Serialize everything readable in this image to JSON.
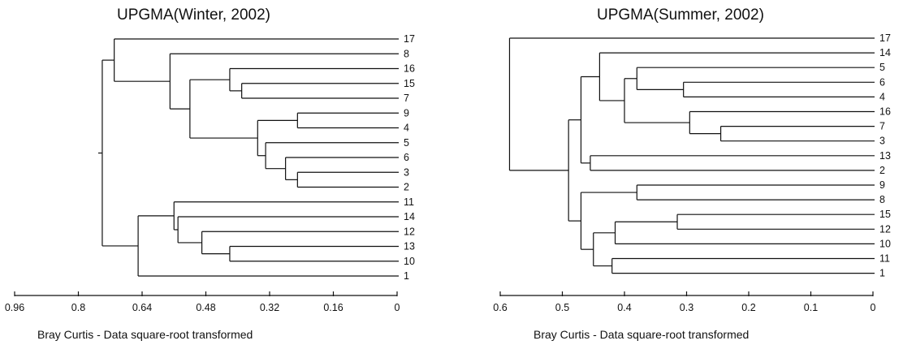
{
  "chart_data": [
    {
      "type": "dendrogram",
      "title": "UPGMA(Winter, 2002)",
      "xlabel": "Bray Curtis - Data square-root transformed",
      "xlim": [
        0.96,
        0
      ],
      "xticks": [
        "0.96",
        "0.8",
        "0.64",
        "0.48",
        "0.32",
        "0.16",
        "0"
      ],
      "leaves": [
        "17",
        "8",
        "16",
        "15",
        "7",
        "9",
        "4",
        "5",
        "6",
        "3",
        "2",
        "11",
        "14",
        "12",
        "13",
        "10",
        "1"
      ],
      "merges": [
        {
          "id": "m1",
          "children": [
            "15",
            "7"
          ],
          "height": 0.39
        },
        {
          "id": "m2",
          "children": [
            "16",
            "m1"
          ],
          "height": 0.42
        },
        {
          "id": "m3",
          "children": [
            "3",
            "2"
          ],
          "height": 0.25
        },
        {
          "id": "m4",
          "children": [
            "6",
            "m3"
          ],
          "height": 0.28
        },
        {
          "id": "m5",
          "children": [
            "5",
            "m4"
          ],
          "height": 0.33
        },
        {
          "id": "m6",
          "children": [
            "9",
            "4"
          ],
          "height": 0.25
        },
        {
          "id": "m7",
          "children": [
            "m6",
            "m5"
          ],
          "height": 0.35
        },
        {
          "id": "m8",
          "children": [
            "m2",
            "m7"
          ],
          "height": 0.52
        },
        {
          "id": "m9",
          "children": [
            "8",
            "m8"
          ],
          "height": 0.57
        },
        {
          "id": "m10",
          "children": [
            "17",
            "m9"
          ],
          "height": 0.71
        },
        {
          "id": "m11",
          "children": [
            "13",
            "10"
          ],
          "height": 0.42
        },
        {
          "id": "m12",
          "children": [
            "12",
            "m11"
          ],
          "height": 0.49
        },
        {
          "id": "m13",
          "children": [
            "14",
            "m12"
          ],
          "height": 0.55
        },
        {
          "id": "m14",
          "children": [
            "11",
            "m13"
          ],
          "height": 0.56
        },
        {
          "id": "m15",
          "children": [
            "m14",
            "1"
          ],
          "height": 0.65
        },
        {
          "id": "m16",
          "children": [
            "m10",
            "m15"
          ],
          "height": 0.74
        }
      ]
    },
    {
      "type": "dendrogram",
      "title": "UPGMA(Summer, 2002)",
      "xlabel": "Bray Curtis - Data square-root transformed",
      "xlim": [
        0.6,
        0
      ],
      "xticks": [
        "0.6",
        "0.5",
        "0.4",
        "0.3",
        "0.2",
        "0.1",
        "0"
      ],
      "leaves": [
        "17",
        "14",
        "5",
        "6",
        "4",
        "16",
        "7",
        "3",
        "13",
        "2",
        "9",
        "8",
        "15",
        "12",
        "10",
        "11",
        "1"
      ],
      "merges": [
        {
          "id": "n1",
          "children": [
            "6",
            "4"
          ],
          "height": 0.305
        },
        {
          "id": "n2",
          "children": [
            "5",
            "n1"
          ],
          "height": 0.38
        },
        {
          "id": "n3",
          "children": [
            "7",
            "3"
          ],
          "height": 0.245
        },
        {
          "id": "n4",
          "children": [
            "16",
            "n3"
          ],
          "height": 0.295
        },
        {
          "id": "n5",
          "children": [
            "n2",
            "n4"
          ],
          "height": 0.4
        },
        {
          "id": "n6",
          "children": [
            "14",
            "n5"
          ],
          "height": 0.44
        },
        {
          "id": "n7",
          "children": [
            "13",
            "2"
          ],
          "height": 0.455
        },
        {
          "id": "n8",
          "children": [
            "n6",
            "n7"
          ],
          "height": 0.47
        },
        {
          "id": "n9",
          "children": [
            "9",
            "8"
          ],
          "height": 0.38
        },
        {
          "id": "n10",
          "children": [
            "15",
            "12"
          ],
          "height": 0.315
        },
        {
          "id": "n11",
          "children": [
            "n10",
            "10"
          ],
          "height": 0.415
        },
        {
          "id": "n12",
          "children": [
            "11",
            "1"
          ],
          "height": 0.42
        },
        {
          "id": "n13",
          "children": [
            "n11",
            "n12"
          ],
          "height": 0.45
        },
        {
          "id": "n14",
          "children": [
            "n9",
            "n13"
          ],
          "height": 0.47
        },
        {
          "id": "n15",
          "children": [
            "n8",
            "n14"
          ],
          "height": 0.49
        },
        {
          "id": "n16",
          "children": [
            "17",
            "n15"
          ],
          "height": 0.585
        }
      ]
    }
  ]
}
